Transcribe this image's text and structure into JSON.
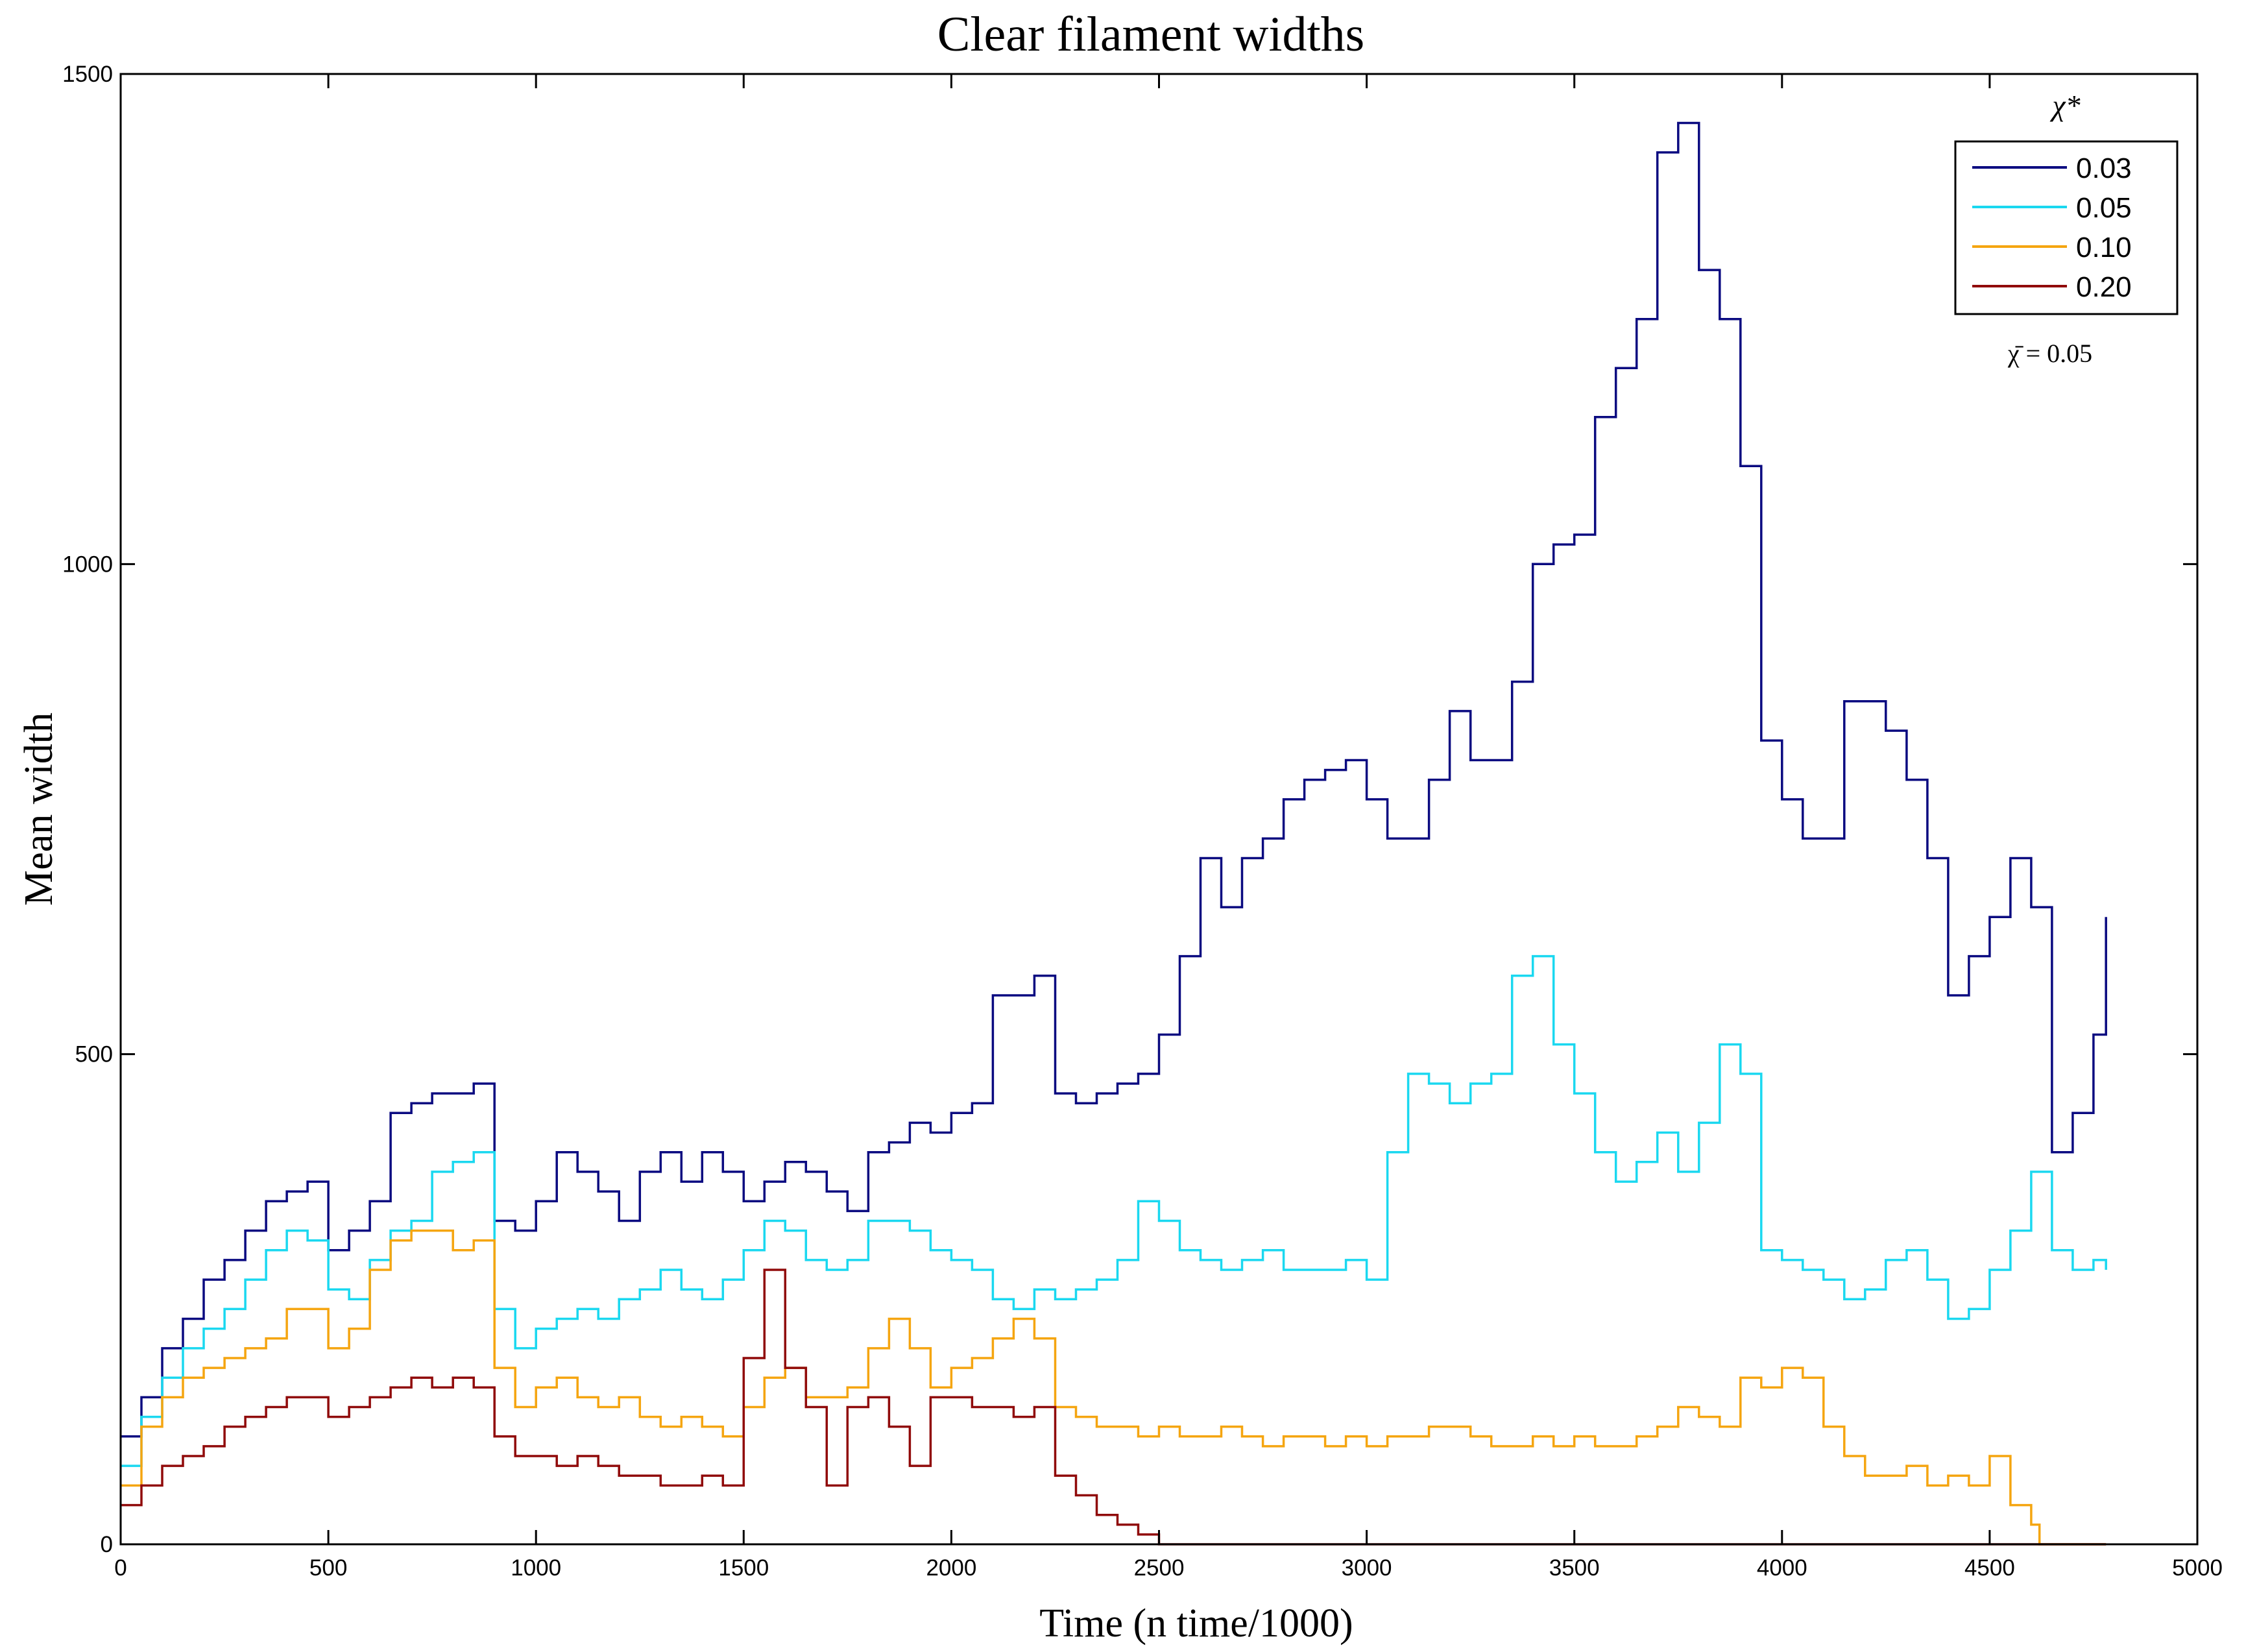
{
  "chart_data": {
    "type": "line",
    "title": "Clear filament widths",
    "xlabel": "Time (n time/1000)",
    "ylabel": "Mean width",
    "xlim": [
      0,
      5000
    ],
    "ylim": [
      0,
      1500
    ],
    "xticks": [
      0,
      500,
      1000,
      1500,
      2000,
      2500,
      3000,
      3500,
      4000,
      4500,
      5000
    ],
    "yticks": [
      0,
      500,
      1000,
      1500
    ],
    "grid": false,
    "legend": {
      "title": "χ*",
      "placement": "top-right"
    },
    "annotation": "χ̄ = 0.05",
    "series": [
      {
        "name": "0.03",
        "color": "#0a0a80",
        "x": [
          0,
          50,
          100,
          150,
          200,
          250,
          300,
          350,
          400,
          450,
          500,
          550,
          600,
          650,
          700,
          750,
          800,
          850,
          900,
          950,
          1000,
          1050,
          1100,
          1150,
          1200,
          1250,
          1300,
          1350,
          1400,
          1450,
          1500,
          1550,
          1600,
          1650,
          1700,
          1750,
          1800,
          1850,
          1900,
          1950,
          2000,
          2050,
          2100,
          2150,
          2200,
          2250,
          2300,
          2350,
          2400,
          2450,
          2500,
          2550,
          2600,
          2650,
          2700,
          2750,
          2800,
          2850,
          2900,
          2950,
          3000,
          3050,
          3100,
          3150,
          3200,
          3250,
          3300,
          3350,
          3400,
          3450,
          3500,
          3550,
          3600,
          3650,
          3700,
          3750,
          3800,
          3850,
          3900,
          3950,
          4000,
          4050,
          4100,
          4150,
          4200,
          4250,
          4300,
          4350,
          4400,
          4450,
          4500,
          4550,
          4600,
          4650,
          4700,
          4750,
          4780
        ],
        "values": [
          110,
          150,
          200,
          230,
          270,
          290,
          320,
          350,
          360,
          370,
          300,
          320,
          350,
          440,
          450,
          460,
          460,
          470,
          330,
          320,
          350,
          400,
          380,
          360,
          330,
          380,
          400,
          370,
          400,
          380,
          350,
          370,
          390,
          380,
          360,
          340,
          400,
          410,
          430,
          420,
          440,
          450,
          560,
          560,
          580,
          460,
          450,
          460,
          470,
          480,
          520,
          600,
          700,
          650,
          700,
          720,
          760,
          780,
          790,
          800,
          760,
          720,
          720,
          780,
          850,
          800,
          800,
          880,
          1000,
          1020,
          1030,
          1150,
          1200,
          1250,
          1420,
          1450,
          1300,
          1250,
          1100,
          820,
          760,
          720,
          720,
          860,
          860,
          830,
          780,
          700,
          560,
          600,
          640,
          700,
          650,
          400,
          440,
          520,
          640
        ]
      },
      {
        "name": "0.05",
        "color": "#1ad8f0",
        "x": [
          0,
          50,
          100,
          150,
          200,
          250,
          300,
          350,
          400,
          450,
          500,
          550,
          600,
          650,
          700,
          750,
          800,
          850,
          900,
          950,
          1000,
          1050,
          1100,
          1150,
          1200,
          1250,
          1300,
          1350,
          1400,
          1450,
          1500,
          1550,
          1600,
          1650,
          1700,
          1750,
          1800,
          1850,
          1900,
          1950,
          2000,
          2050,
          2100,
          2150,
          2200,
          2250,
          2300,
          2350,
          2400,
          2450,
          2500,
          2550,
          2600,
          2650,
          2700,
          2750,
          2800,
          2850,
          2900,
          2950,
          3000,
          3050,
          3100,
          3150,
          3200,
          3250,
          3300,
          3350,
          3400,
          3450,
          3500,
          3550,
          3600,
          3650,
          3700,
          3750,
          3800,
          3850,
          3900,
          3950,
          4000,
          4050,
          4100,
          4150,
          4200,
          4250,
          4300,
          4350,
          4400,
          4450,
          4500,
          4550,
          4600,
          4650,
          4700,
          4750,
          4780
        ],
        "values": [
          80,
          130,
          170,
          200,
          220,
          240,
          270,
          300,
          320,
          310,
          260,
          250,
          290,
          320,
          330,
          380,
          390,
          400,
          240,
          200,
          220,
          230,
          240,
          230,
          250,
          260,
          280,
          260,
          250,
          270,
          300,
          330,
          320,
          290,
          280,
          290,
          330,
          330,
          320,
          300,
          290,
          280,
          250,
          240,
          260,
          250,
          260,
          270,
          290,
          350,
          330,
          300,
          290,
          280,
          290,
          300,
          280,
          280,
          280,
          290,
          270,
          400,
          480,
          470,
          450,
          470,
          480,
          580,
          600,
          510,
          460,
          400,
          370,
          390,
          420,
          380,
          430,
          510,
          480,
          300,
          290,
          280,
          270,
          250,
          260,
          290,
          300,
          270,
          230,
          240,
          280,
          320,
          380,
          300,
          280,
          290,
          280
        ]
      },
      {
        "name": "0.10",
        "color": "#f5a510",
        "x": [
          0,
          50,
          100,
          150,
          200,
          250,
          300,
          350,
          400,
          450,
          500,
          550,
          600,
          650,
          700,
          750,
          800,
          850,
          900,
          950,
          1000,
          1050,
          1100,
          1150,
          1200,
          1250,
          1300,
          1350,
          1400,
          1450,
          1500,
          1550,
          1600,
          1650,
          1700,
          1750,
          1800,
          1850,
          1900,
          1950,
          2000,
          2050,
          2100,
          2150,
          2200,
          2250,
          2300,
          2350,
          2400,
          2450,
          2500,
          2550,
          2600,
          2650,
          2700,
          2750,
          2800,
          2850,
          2900,
          2950,
          3000,
          3050,
          3100,
          3150,
          3200,
          3250,
          3300,
          3350,
          3400,
          3450,
          3500,
          3550,
          3600,
          3650,
          3700,
          3750,
          3800,
          3850,
          3900,
          3950,
          4000,
          4050,
          4100,
          4150,
          4200,
          4250,
          4300,
          4350,
          4400,
          4450,
          4500,
          4550,
          4600,
          4620,
          4700,
          4780
        ],
        "values": [
          60,
          120,
          150,
          170,
          180,
          190,
          200,
          210,
          240,
          240,
          200,
          220,
          280,
          310,
          320,
          320,
          300,
          310,
          180,
          140,
          160,
          170,
          150,
          140,
          150,
          130,
          120,
          130,
          120,
          110,
          140,
          170,
          180,
          150,
          150,
          160,
          200,
          230,
          200,
          160,
          180,
          190,
          210,
          230,
          210,
          140,
          130,
          120,
          120,
          110,
          120,
          110,
          110,
          120,
          110,
          100,
          110,
          110,
          100,
          110,
          100,
          110,
          110,
          120,
          120,
          110,
          100,
          100,
          110,
          100,
          110,
          100,
          100,
          110,
          120,
          140,
          130,
          120,
          170,
          160,
          180,
          170,
          120,
          90,
          70,
          70,
          80,
          60,
          70,
          60,
          90,
          40,
          20,
          0,
          0,
          0
        ]
      },
      {
        "name": "0.20",
        "color": "#900a0a",
        "x": [
          0,
          50,
          100,
          150,
          200,
          250,
          300,
          350,
          400,
          450,
          500,
          550,
          600,
          650,
          700,
          750,
          800,
          850,
          900,
          950,
          1000,
          1050,
          1100,
          1150,
          1200,
          1250,
          1300,
          1350,
          1400,
          1450,
          1500,
          1550,
          1600,
          1650,
          1700,
          1750,
          1800,
          1850,
          1900,
          1950,
          2000,
          2050,
          2100,
          2150,
          2200,
          2250,
          2300,
          2350,
          2400,
          2450,
          2500,
          3000,
          3500,
          4000,
          4500,
          4780
        ],
        "values": [
          40,
          60,
          80,
          90,
          100,
          120,
          130,
          140,
          150,
          150,
          130,
          140,
          150,
          160,
          170,
          160,
          170,
          160,
          110,
          90,
          90,
          80,
          90,
          80,
          70,
          70,
          60,
          60,
          70,
          60,
          190,
          280,
          180,
          140,
          60,
          140,
          150,
          120,
          80,
          150,
          150,
          140,
          140,
          130,
          140,
          70,
          50,
          30,
          20,
          10,
          0,
          0,
          0,
          0,
          0,
          0
        ]
      }
    ]
  }
}
